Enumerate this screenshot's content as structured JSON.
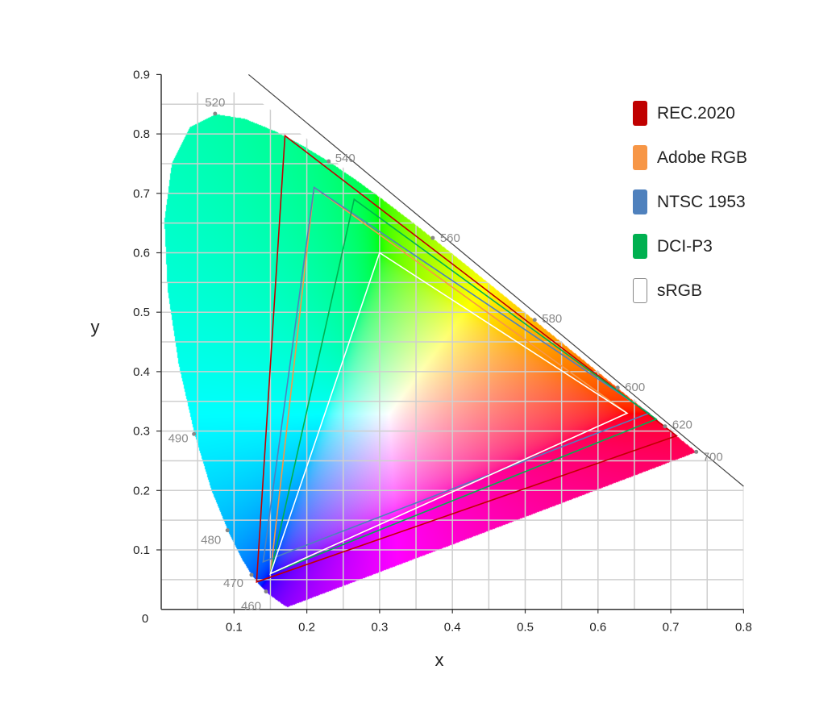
{
  "chart_data": {
    "type": "scatter",
    "title": "",
    "xlabel": "x",
    "ylabel": "y",
    "xlim": [
      0,
      0.8
    ],
    "ylim": [
      0,
      0.9
    ],
    "x_ticks": [
      "0.1",
      "0.2",
      "0.3",
      "0.4",
      "0.5",
      "0.6",
      "0.7",
      "0.8"
    ],
    "x_tick_values": [
      0.1,
      0.2,
      0.3,
      0.4,
      0.5,
      0.6,
      0.7,
      0.8
    ],
    "y_ticks": [
      "0.1",
      "0.2",
      "0.3",
      "0.4",
      "0.5",
      "0.6",
      "0.7",
      "0.8",
      "0.9"
    ],
    "y_tick_values": [
      0.1,
      0.2,
      0.3,
      0.4,
      0.5,
      0.6,
      0.7,
      0.8,
      0.9
    ],
    "origin_label": "0",
    "grid": true,
    "grid_step": 0.05,
    "legend_placement": "top-right",
    "spectral_locus": [
      [
        380,
        0.1741,
        0.005
      ],
      [
        400,
        0.1733,
        0.0048
      ],
      [
        410,
        0.1726,
        0.0048
      ],
      [
        420,
        0.1714,
        0.0051
      ],
      [
        425,
        0.1703,
        0.0058
      ],
      [
        430,
        0.1689,
        0.0069
      ],
      [
        435,
        0.1669,
        0.0086
      ],
      [
        440,
        0.1644,
        0.0109
      ],
      [
        445,
        0.1611,
        0.0138
      ],
      [
        450,
        0.1566,
        0.0177
      ],
      [
        455,
        0.151,
        0.0227
      ],
      [
        460,
        0.144,
        0.0297
      ],
      [
        465,
        0.1355,
        0.0399
      ],
      [
        470,
        0.1241,
        0.0578
      ],
      [
        475,
        0.1096,
        0.0868
      ],
      [
        480,
        0.0913,
        0.1327
      ],
      [
        485,
        0.0687,
        0.2007
      ],
      [
        490,
        0.0454,
        0.295
      ],
      [
        495,
        0.0235,
        0.4127
      ],
      [
        500,
        0.0082,
        0.5384
      ],
      [
        505,
        0.0039,
        0.6548
      ],
      [
        510,
        0.0139,
        0.7502
      ],
      [
        515,
        0.0389,
        0.812
      ],
      [
        520,
        0.0743,
        0.8338
      ],
      [
        525,
        0.1142,
        0.8262
      ],
      [
        530,
        0.1547,
        0.8059
      ],
      [
        535,
        0.1929,
        0.7816
      ],
      [
        540,
        0.2296,
        0.7543
      ],
      [
        545,
        0.2658,
        0.7243
      ],
      [
        550,
        0.3016,
        0.6923
      ],
      [
        555,
        0.3373,
        0.6589
      ],
      [
        560,
        0.3731,
        0.6245
      ],
      [
        565,
        0.4087,
        0.5896
      ],
      [
        570,
        0.4441,
        0.5547
      ],
      [
        575,
        0.4788,
        0.5202
      ],
      [
        580,
        0.5125,
        0.4866
      ],
      [
        585,
        0.5448,
        0.4544
      ],
      [
        590,
        0.5752,
        0.4242
      ],
      [
        595,
        0.6029,
        0.3965
      ],
      [
        600,
        0.627,
        0.3725
      ],
      [
        605,
        0.6482,
        0.3514
      ],
      [
        610,
        0.6658,
        0.334
      ],
      [
        615,
        0.6801,
        0.3197
      ],
      [
        620,
        0.6915,
        0.3083
      ],
      [
        625,
        0.7006,
        0.2993
      ],
      [
        630,
        0.7079,
        0.292
      ],
      [
        640,
        0.719,
        0.2809
      ],
      [
        650,
        0.726,
        0.274
      ],
      [
        660,
        0.73,
        0.27
      ],
      [
        680,
        0.7334,
        0.2666
      ],
      [
        700,
        0.7347,
        0.2653
      ]
    ],
    "wavelength_labels": [
      {
        "nm": "460",
        "x": 0.144,
        "y": 0.03
      },
      {
        "nm": "470",
        "x": 0.124,
        "y": 0.058
      },
      {
        "nm": "480",
        "x": 0.091,
        "y": 0.133
      },
      {
        "nm": "490",
        "x": 0.045,
        "y": 0.295
      },
      {
        "nm": "520",
        "x": 0.074,
        "y": 0.834
      },
      {
        "nm": "540",
        "x": 0.23,
        "y": 0.754
      },
      {
        "nm": "560",
        "x": 0.373,
        "y": 0.625
      },
      {
        "nm": "580",
        "x": 0.513,
        "y": 0.487
      },
      {
        "nm": "600",
        "x": 0.627,
        "y": 0.373
      },
      {
        "nm": "620",
        "x": 0.692,
        "y": 0.308
      },
      {
        "nm": "700",
        "x": 0.735,
        "y": 0.265
      }
    ],
    "purple_line": [
      [
        0.12,
        0.9
      ],
      [
        0.8,
        0.207
      ]
    ],
    "series": [
      {
        "name": "REC.2020",
        "color": "#c00000",
        "points": [
          [
            0.708,
            0.292
          ],
          [
            0.17,
            0.797
          ],
          [
            0.131,
            0.046
          ]
        ]
      },
      {
        "name": "Adobe RGB",
        "color": "#f79646",
        "points": [
          [
            0.64,
            0.33
          ],
          [
            0.21,
            0.71
          ],
          [
            0.15,
            0.06
          ]
        ]
      },
      {
        "name": "NTSC 1953",
        "color": "#4f81bd",
        "points": [
          [
            0.67,
            0.33
          ],
          [
            0.21,
            0.71
          ],
          [
            0.14,
            0.08
          ]
        ]
      },
      {
        "name": "DCI-P3",
        "color": "#00b050",
        "points": [
          [
            0.68,
            0.32
          ],
          [
            0.265,
            0.69
          ],
          [
            0.15,
            0.06
          ]
        ]
      },
      {
        "name": "sRGB",
        "color": "#ffffff",
        "points": [
          [
            0.64,
            0.33
          ],
          [
            0.3,
            0.6
          ],
          [
            0.15,
            0.06
          ]
        ]
      }
    ]
  }
}
